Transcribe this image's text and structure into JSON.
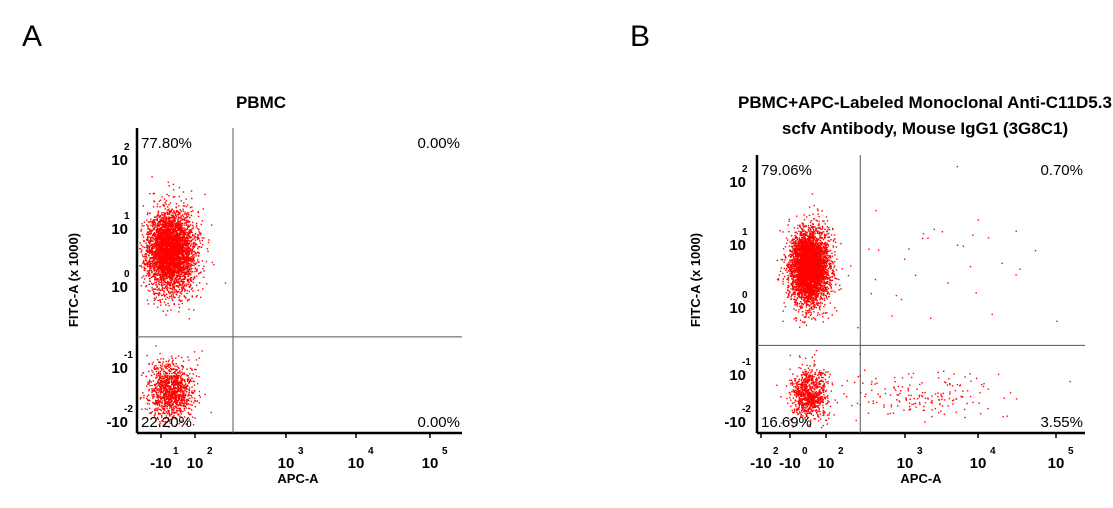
{
  "panels": {
    "a": {
      "letter": "A"
    },
    "b": {
      "letter": "B"
    }
  },
  "chart_data": [
    {
      "type": "scatter",
      "panel": "A",
      "title_lines": [
        "PBMC"
      ],
      "xlabel": "APC-A",
      "ylabel": "FITC-A (x 1000)",
      "x_ticks": [
        {
          "base": "-10",
          "exp": "1"
        },
        {
          "base": "10",
          "exp": "2"
        },
        {
          "base": "10",
          "exp": "3"
        },
        {
          "base": "10",
          "exp": "4"
        },
        {
          "base": "10",
          "exp": "5"
        }
      ],
      "y_ticks": [
        {
          "base": "-10",
          "exp": "-2"
        },
        {
          "base": "10",
          "exp": "-1"
        },
        {
          "base": "10",
          "exp": "0"
        },
        {
          "base": "10",
          "exp": "1"
        },
        {
          "base": "10",
          "exp": "2"
        }
      ],
      "quadrants": {
        "UL": "77.80%",
        "UR": "0.00%",
        "LL": "22.20%",
        "LR": "0.00%"
      },
      "gate": {
        "x": 1.7,
        "y": -0.75
      },
      "point_color": "#ff0000",
      "populations": [
        {
          "x_center": 0.85,
          "y_center": 0.55,
          "x_spread": 0.16,
          "y_spread": 0.3,
          "fraction": 0.778
        },
        {
          "x_center": 0.85,
          "y_center": -1.55,
          "x_spread": 0.16,
          "y_spread": 0.22,
          "fraction": 0.222
        }
      ]
    },
    {
      "type": "scatter",
      "panel": "B",
      "title_lines": [
        "PBMC+APC-Labeled Monoclonal Anti-C11D5.3",
        "scfv Antibody, Mouse IgG1 (3G8C1)"
      ],
      "xlabel": "APC-A",
      "ylabel": "FITC-A (x 1000)",
      "x_ticks": [
        {
          "base": "-10",
          "exp": "2"
        },
        {
          "base": "-10",
          "exp": "0"
        },
        {
          "base": "10",
          "exp": "2"
        },
        {
          "base": "10",
          "exp": "3"
        },
        {
          "base": "10",
          "exp": "4"
        },
        {
          "base": "10",
          "exp": "5"
        }
      ],
      "y_ticks": [
        {
          "base": "-10",
          "exp": "-2"
        },
        {
          "base": "10",
          "exp": "-1"
        },
        {
          "base": "10",
          "exp": "0"
        },
        {
          "base": "10",
          "exp": "1"
        },
        {
          "base": "10",
          "exp": "2"
        }
      ],
      "quadrants": {
        "UL": "79.06%",
        "UR": "0.70%",
        "LL": "16.69%",
        "LR": "3.55%"
      },
      "gate": {
        "x": 1.7,
        "y": -0.75
      },
      "point_color": "#ff0000",
      "populations": [
        {
          "x_center": 0.85,
          "y_center": 0.55,
          "x_spread": 0.16,
          "y_spread": 0.3,
          "fraction": 0.79
        },
        {
          "x_center": 0.85,
          "y_center": -1.55,
          "x_spread": 0.16,
          "y_spread": 0.22,
          "fraction": 0.167
        },
        {
          "x_center": 2.6,
          "y_center": -1.55,
          "x_spread": 0.7,
          "y_spread": 0.2,
          "fraction": 0.035
        },
        {
          "x_center": 3.0,
          "y_center": 0.55,
          "x_spread": 1.0,
          "y_spread": 0.5,
          "fraction": 0.007
        }
      ]
    }
  ]
}
